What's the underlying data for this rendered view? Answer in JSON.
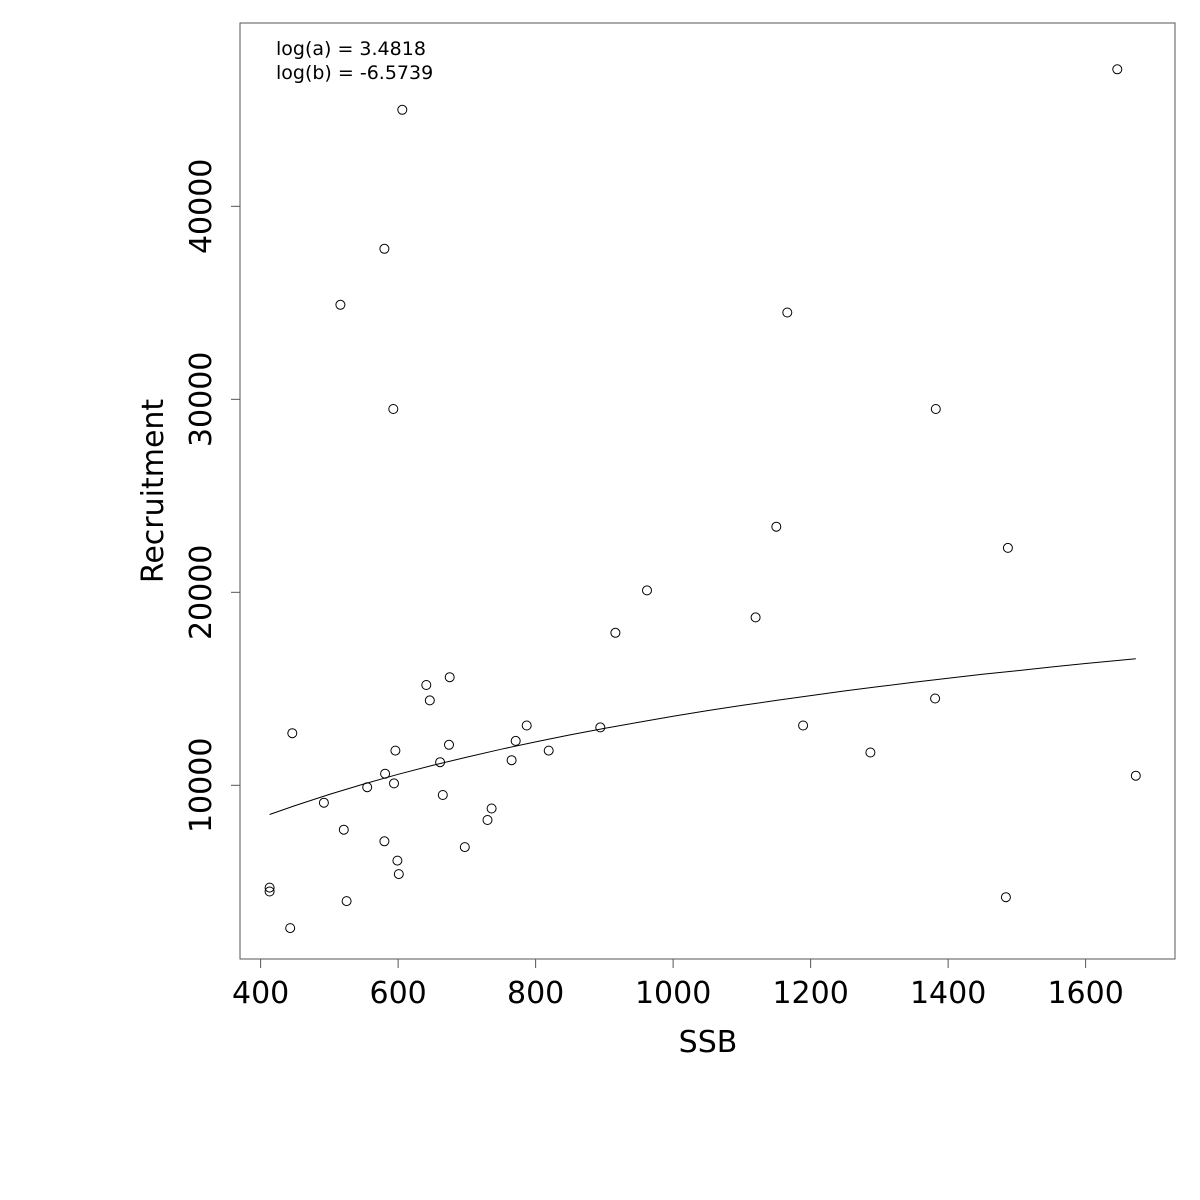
{
  "chart_data": {
    "type": "scatter",
    "title": "",
    "xlabel": "SSB",
    "ylabel": "Recruitment",
    "xlim": [
      370,
      1730
    ],
    "ylim": [
      1000,
      49500
    ],
    "xticks": [
      400,
      600,
      800,
      1000,
      1200,
      1400,
      1600
    ],
    "yticks": [
      10000,
      20000,
      30000,
      40000
    ],
    "xtick_labels": [
      "400",
      "600",
      "800",
      "1000",
      "1200",
      "1400",
      "1600"
    ],
    "ytick_labels": [
      "10000",
      "20000",
      "30000",
      "40000"
    ],
    "grid": false,
    "legend": "none",
    "annotations": [
      "log(a) = 3.4818",
      "log(b) = -6.5739"
    ],
    "points": {
      "x": [
        413,
        413,
        443,
        446,
        492,
        516,
        521,
        525,
        555,
        580,
        580,
        581,
        593,
        594,
        596,
        599,
        601,
        606,
        641,
        646,
        661,
        665,
        674,
        675,
        697,
        730,
        736,
        765,
        771,
        787,
        819,
        894,
        916,
        962,
        1120,
        1150,
        1166,
        1189,
        1287,
        1381,
        1382,
        1484,
        1487,
        1646,
        1673
      ],
      "y": [
        4700,
        4500,
        2600,
        12700,
        9100,
        34900,
        7700,
        4000,
        9900,
        37800,
        7100,
        10600,
        29500,
        10100,
        11800,
        6100,
        5400,
        45000,
        15200,
        14400,
        11200,
        9500,
        12100,
        15600,
        6800,
        8200,
        8800,
        11300,
        12300,
        13100,
        11800,
        13000,
        17900,
        20100,
        18700,
        23400,
        34500,
        13100,
        11700,
        14500,
        29500,
        4200,
        22300,
        47100,
        10500
      ]
    },
    "series": [
      {
        "type": "line",
        "x": [
          413,
          450,
          500,
          550,
          600,
          650,
          700,
          750,
          800,
          850,
          900,
          950,
          1000,
          1050,
          1100,
          1150,
          1200,
          1250,
          1300,
          1350,
          1400,
          1450,
          1500,
          1550,
          1600,
          1650,
          1673
        ],
        "y": [
          8490,
          8950,
          9530,
          10070,
          10570,
          11030,
          11460,
          11870,
          12250,
          12610,
          12950,
          13270,
          13580,
          13870,
          14140,
          14400,
          14650,
          14890,
          15120,
          15340,
          15550,
          15750,
          15940,
          16130,
          16310,
          16480,
          16560
        ]
      }
    ]
  }
}
